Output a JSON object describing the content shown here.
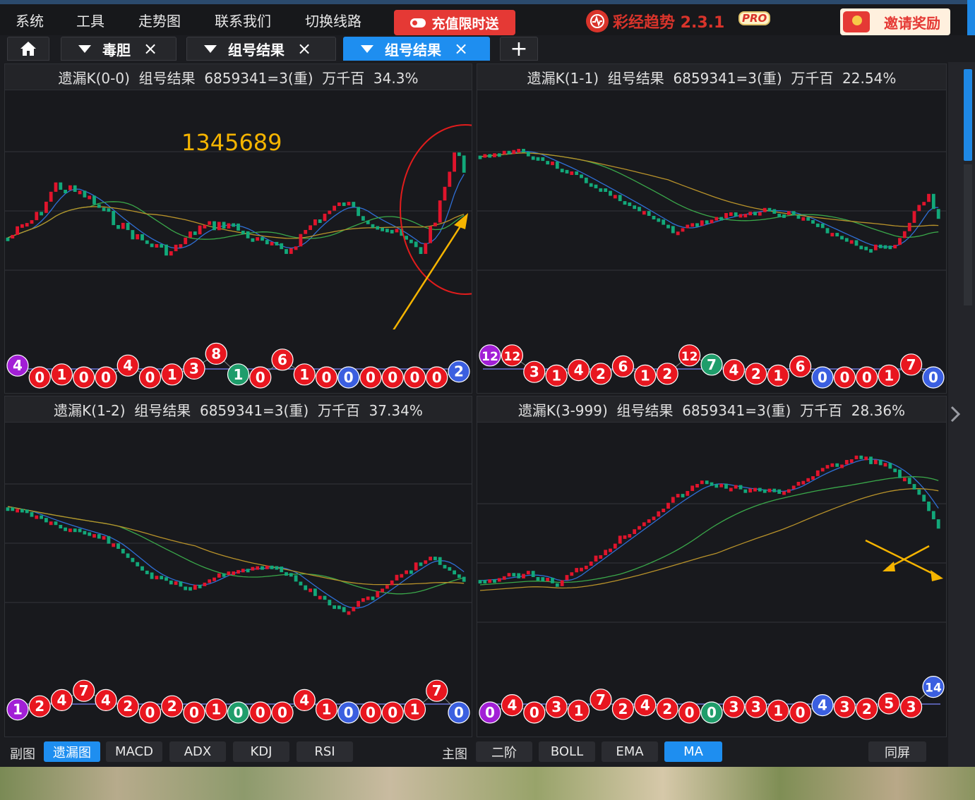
{
  "menu": [
    "系统",
    "工具",
    "走势图",
    "联系我们",
    "切换线路"
  ],
  "promo": {
    "recharge_label": "充值限时送",
    "app_name": "彩经趋势 2.3.1",
    "pro_badge": "PRO",
    "invite_label": "邀请奖励"
  },
  "tabs": [
    {
      "label": "毒胆",
      "active": false
    },
    {
      "label": "组号结果",
      "active": false
    },
    {
      "label": "组号结果",
      "active": true
    }
  ],
  "tab_close_icon": "×",
  "tab_add_icon": "+",
  "panels": [
    {
      "title": "遗漏K(0-0)  组号结果  6859341=3(重)  万千百  34.3%",
      "annotation": "1345689",
      "balls": [
        [
          "4",
          "purple"
        ],
        [
          "0",
          "red"
        ],
        [
          "1",
          "red"
        ],
        [
          "0",
          "red"
        ],
        [
          "0",
          "red"
        ],
        [
          "4",
          "red"
        ],
        [
          "0",
          "red"
        ],
        [
          "1",
          "red"
        ],
        [
          "3",
          "red"
        ],
        [
          "8",
          "red"
        ],
        [
          "1",
          "green"
        ],
        [
          "0",
          "red"
        ],
        [
          "6",
          "red"
        ],
        [
          "1",
          "red"
        ],
        [
          "0",
          "red"
        ],
        [
          "0",
          "blue"
        ],
        [
          "0",
          "red"
        ],
        [
          "0",
          "red"
        ],
        [
          "0",
          "red"
        ],
        [
          "0",
          "red"
        ],
        [
          "2",
          "blue"
        ]
      ]
    },
    {
      "title": "遗漏K(1-1)  组号结果  6859341=3(重)  万千百  22.54%",
      "balls": [
        [
          "12",
          "purple"
        ],
        [
          "12",
          "red"
        ],
        [
          "3",
          "red"
        ],
        [
          "1",
          "red"
        ],
        [
          "4",
          "red"
        ],
        [
          "2",
          "red"
        ],
        [
          "6",
          "red"
        ],
        [
          "1",
          "red"
        ],
        [
          "2",
          "red"
        ],
        [
          "12",
          "red"
        ],
        [
          "7",
          "green"
        ],
        [
          "4",
          "red"
        ],
        [
          "2",
          "red"
        ],
        [
          "1",
          "red"
        ],
        [
          "6",
          "red"
        ],
        [
          "0",
          "blue"
        ],
        [
          "0",
          "red"
        ],
        [
          "0",
          "red"
        ],
        [
          "1",
          "red"
        ],
        [
          "7",
          "red"
        ],
        [
          "0",
          "blue"
        ]
      ]
    },
    {
      "title": "遗漏K(1-2)  组号结果  6859341=3(重)  万千百  37.34%",
      "balls": [
        [
          "1",
          "purple"
        ],
        [
          "2",
          "red"
        ],
        [
          "4",
          "red"
        ],
        [
          "7",
          "red"
        ],
        [
          "4",
          "red"
        ],
        [
          "2",
          "red"
        ],
        [
          "0",
          "red"
        ],
        [
          "2",
          "red"
        ],
        [
          "0",
          "red"
        ],
        [
          "1",
          "red"
        ],
        [
          "0",
          "green"
        ],
        [
          "0",
          "red"
        ],
        [
          "0",
          "red"
        ],
        [
          "4",
          "red"
        ],
        [
          "1",
          "red"
        ],
        [
          "0",
          "blue"
        ],
        [
          "0",
          "red"
        ],
        [
          "0",
          "red"
        ],
        [
          "1",
          "red"
        ],
        [
          "7",
          "red"
        ],
        [
          "0",
          "blue"
        ]
      ]
    },
    {
      "title": "遗漏K(3-999)  组号结果  6859341=3(重)  万千百  28.36%",
      "balls": [
        [
          "0",
          "purple"
        ],
        [
          "4",
          "red"
        ],
        [
          "0",
          "red"
        ],
        [
          "3",
          "red"
        ],
        [
          "1",
          "red"
        ],
        [
          "7",
          "red"
        ],
        [
          "2",
          "red"
        ],
        [
          "4",
          "red"
        ],
        [
          "2",
          "red"
        ],
        [
          "0",
          "red"
        ],
        [
          "0",
          "green"
        ],
        [
          "3",
          "red"
        ],
        [
          "3",
          "red"
        ],
        [
          "1",
          "red"
        ],
        [
          "0",
          "red"
        ],
        [
          "4",
          "blue"
        ],
        [
          "3",
          "red"
        ],
        [
          "2",
          "red"
        ],
        [
          "5",
          "red"
        ],
        [
          "3",
          "red"
        ],
        [
          "14",
          "blue"
        ]
      ]
    }
  ],
  "bottom": {
    "sub_label": "副图",
    "sub_buttons": [
      "遗漏图",
      "MACD",
      "ADX",
      "KDJ",
      "RSI"
    ],
    "sub_active": "遗漏图",
    "main_label": "主图",
    "main_buttons": [
      "二阶",
      "BOLL",
      "EMA",
      "MA"
    ],
    "main_active": "MA",
    "same_screen": "同屏"
  },
  "colors": {
    "accent": "#1e8ef0",
    "up": "#e0142c",
    "down": "#12a87a",
    "ma_blue": "#2f6fd6",
    "ma_green": "#3aa84a",
    "ma_gold": "#b8922a",
    "annotation": "#f5b400",
    "ball_red": "#e8161f",
    "ball_green": "#1f9d6b",
    "ball_blue": "#3b5fe0",
    "ball_purple": "#a21fd6"
  },
  "icons": {
    "home": "home-icon",
    "dropdown": "triangle-down-icon",
    "close": "close-icon",
    "add": "plus-icon",
    "next": "chevron-right-icon"
  }
}
